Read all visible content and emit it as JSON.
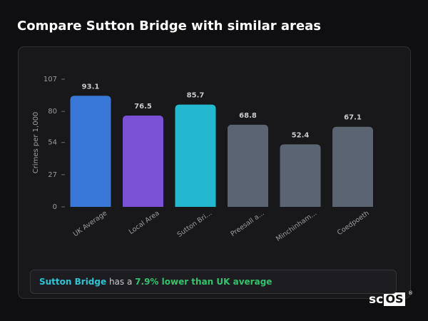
{
  "header": {
    "title": "Compare Sutton Bridge with similar areas"
  },
  "chart_data": {
    "type": "bar",
    "y_label": "Crimes per 1,000",
    "categories": [
      "UK Average",
      "Local Area",
      "Sutton Bri...",
      "Preesall a...",
      "Minchinham...",
      "Coedpoeth"
    ],
    "values": [
      93.1,
      76.5,
      85.7,
      68.8,
      52.4,
      67.1
    ],
    "colors": [
      "#3a78d8",
      "#7b52d6",
      "#22b8cf",
      "#5b6473",
      "#5b6473",
      "#5b6473"
    ],
    "ylim": [
      0,
      107
    ],
    "yticks": [
      0,
      27,
      54,
      80,
      107
    ]
  },
  "callout": {
    "area": "Sutton Bridge",
    "middle": "has a",
    "highlight": "7.9% lower than UK average"
  },
  "brand": {
    "prefix": "sc",
    "boxed": "OS",
    "mark": "®"
  }
}
